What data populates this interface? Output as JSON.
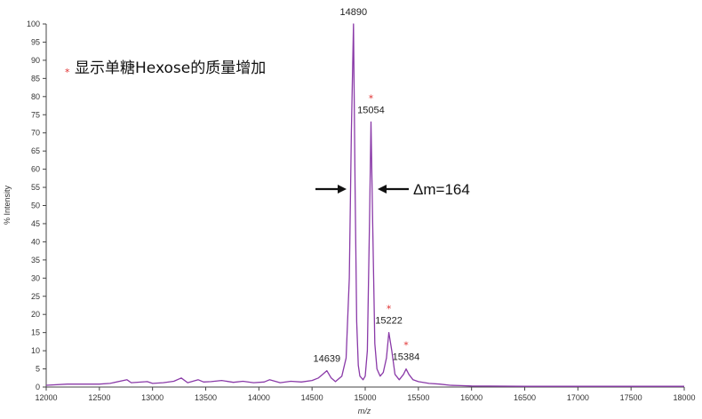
{
  "chart_data": {
    "type": "line",
    "title": "",
    "xlabel": "m/z",
    "ylabel": "% Intensity",
    "xlim": [
      12000,
      18000
    ],
    "ylim": [
      0,
      100
    ],
    "x_ticks": [
      12000,
      12500,
      13000,
      13500,
      14000,
      14500,
      15000,
      15500,
      16000,
      16500,
      17000,
      17500,
      18000
    ],
    "y_ticks": [
      0,
      5,
      10,
      15,
      20,
      25,
      30,
      35,
      40,
      45,
      50,
      55,
      60,
      65,
      70,
      75,
      80,
      85,
      90,
      95,
      100
    ],
    "grid": false,
    "colors": {
      "line": "#8a3aa8",
      "star": "#e03030",
      "axis": "#444444"
    },
    "series": [
      {
        "x": [
          12000,
          12200,
          12500,
          12600,
          12760,
          12800,
          12950,
          13000,
          13100,
          13200,
          13270,
          13330,
          13430,
          13480,
          13550,
          13650,
          13760,
          13850,
          13950,
          14050,
          14100,
          14200,
          14300,
          14400,
          14500,
          14560,
          14600,
          14639,
          14680,
          14720,
          14780,
          14820,
          14850,
          14870,
          14890,
          14905,
          14920,
          14935,
          14950,
          14980,
          15000,
          15020,
          15040,
          15054,
          15070,
          15090,
          15110,
          15140,
          15170,
          15200,
          15222,
          15250,
          15280,
          15320,
          15360,
          15384,
          15410,
          15450,
          15500,
          15600,
          15700,
          15800,
          15900,
          16000,
          16500,
          17000,
          17500,
          18000
        ],
        "y": [
          0.5,
          0.8,
          0.8,
          1.0,
          2.0,
          1.2,
          1.5,
          1.0,
          1.2,
          1.6,
          2.5,
          1.2,
          2.0,
          1.4,
          1.5,
          1.8,
          1.3,
          1.6,
          1.2,
          1.4,
          2.0,
          1.2,
          1.6,
          1.4,
          1.8,
          2.5,
          3.5,
          4.5,
          2.5,
          1.5,
          3.0,
          8.0,
          30.0,
          70.0,
          100.0,
          55.0,
          18.0,
          6.0,
          3.0,
          2.0,
          3.0,
          10.0,
          45.0,
          73.0,
          45.0,
          12.0,
          5.0,
          3.0,
          4.0,
          8.0,
          15.0,
          10.0,
          3.5,
          2.0,
          3.5,
          5.0,
          3.5,
          2.0,
          1.5,
          1.0,
          0.8,
          0.5,
          0.4,
          0.3,
          0.2,
          0.2,
          0.2,
          0.2
        ]
      }
    ],
    "annotations": [
      {
        "x": 14890,
        "y": 100,
        "text": "14890",
        "starred": false
      },
      {
        "x": 15054,
        "y": 73,
        "text": "15054",
        "starred": true
      },
      {
        "x": 15222,
        "y": 15,
        "text": "15222",
        "starred": true
      },
      {
        "x": 15384,
        "y": 5,
        "text": "15384",
        "starred": true
      },
      {
        "x": 14639,
        "y": 4.5,
        "text": "14639",
        "starred": false
      }
    ],
    "delta_label": "Δm=164",
    "legend": {
      "symbol": "*",
      "text": "显示单糖Hexose的质量增加",
      "placement": "top-left"
    }
  }
}
